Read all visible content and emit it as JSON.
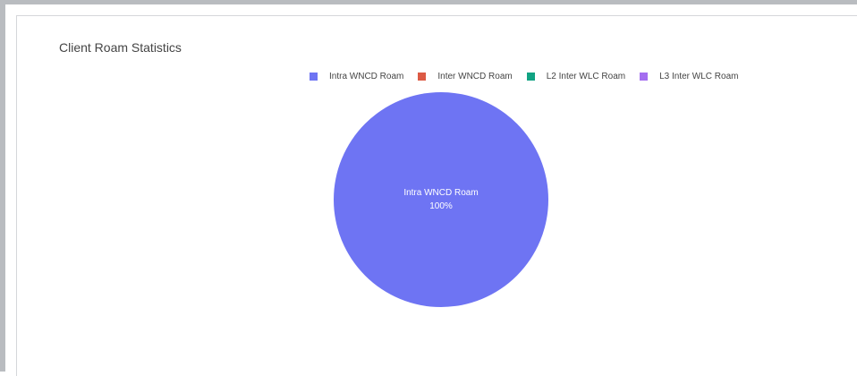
{
  "chart_data": {
    "type": "pie",
    "title": "Client Roam Statistics",
    "labels": [
      "Intra WNCD Roam",
      "Inter WNCD Roam",
      "L2 Inter WLC Roam",
      "L3 Inter WLC Roam"
    ],
    "values": [
      100,
      0,
      0,
      0
    ],
    "colors": [
      "#6e74f3",
      "#dc5a45",
      "#12a383",
      "#a46ef0"
    ],
    "slice_labels": [
      {
        "label": "Intra WNCD Roam",
        "percent": "100%"
      }
    ],
    "legend_position": "top"
  }
}
